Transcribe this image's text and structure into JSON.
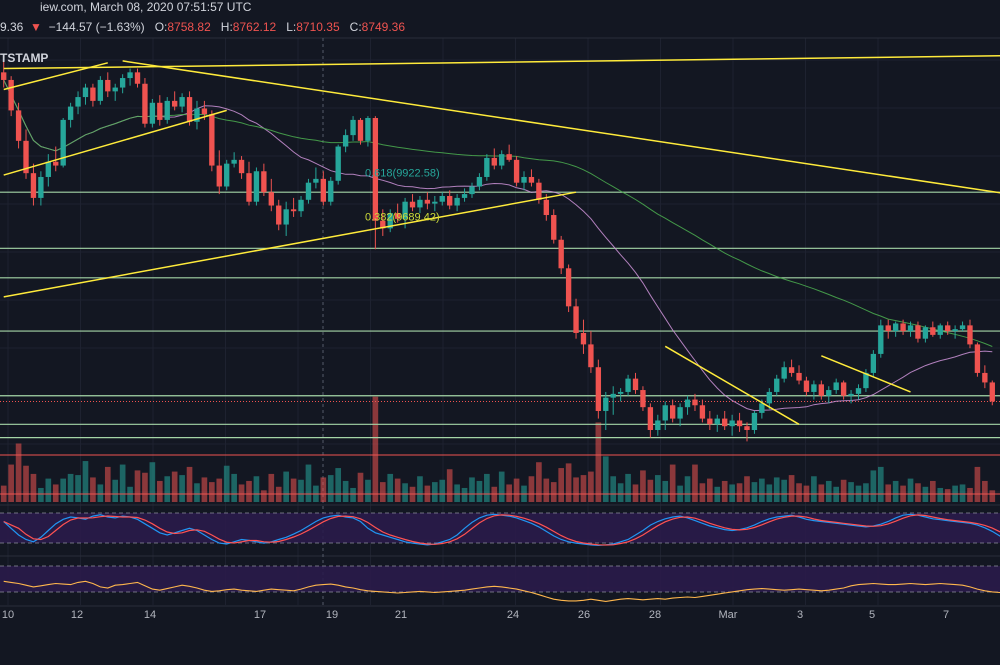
{
  "header": {
    "source_line": "iew.com, March 08, 2020 07:51:57 UTC",
    "price_fragment": "9.36",
    "change": "−144.57 (−1.63%)",
    "ohlc": [
      {
        "key": "O:",
        "value": "8758.82"
      },
      {
        "key": "H:",
        "value": "8762.12"
      },
      {
        "key": "L:",
        "value": "8710.35"
      },
      {
        "key": "C:",
        "value": "8749.36"
      }
    ],
    "exchange_fragment": "TSTAMP"
  },
  "fib_labels": [
    "0.618(9922.58)",
    "0.382(9689.42)"
  ],
  "colors": {
    "background": "#131722",
    "up": "#26a69a",
    "down": "#ef5350",
    "trendline": "#ffeb3b",
    "hline": "#a5d6a7",
    "ma_fast": "#ce93d8",
    "ma_slow": "#4caf50",
    "stoch_k": "#2196f3",
    "stoch_d": "#ff5252",
    "rsi": "#ffb74d",
    "panel_fill": "#2a1b4a"
  },
  "chart_data": {
    "type": "candlestick",
    "symbol_fragment": "TSTAMP",
    "x_ticks": [
      "10",
      "12",
      "14",
      "17",
      "19",
      "21",
      "24",
      "26",
      "28",
      "Mar",
      "3",
      "5",
      "7"
    ],
    "price_range": [
      8600,
      10650
    ],
    "candles": [
      [
        10480,
        10560,
        10400,
        10440
      ],
      [
        10440,
        10460,
        10250,
        10280
      ],
      [
        10280,
        10320,
        10080,
        10120
      ],
      [
        10120,
        10180,
        9920,
        9950
      ],
      [
        9950,
        10000,
        9780,
        9820
      ],
      [
        9820,
        9960,
        9780,
        9930
      ],
      [
        9930,
        10050,
        9880,
        10010
      ],
      [
        10010,
        10090,
        9960,
        9990
      ],
      [
        9990,
        10240,
        9980,
        10230
      ],
      [
        10230,
        10320,
        10190,
        10300
      ],
      [
        10300,
        10380,
        10260,
        10350
      ],
      [
        10350,
        10420,
        10310,
        10400
      ],
      [
        10400,
        10420,
        10300,
        10330
      ],
      [
        10330,
        10460,
        10310,
        10440
      ],
      [
        10440,
        10480,
        10350,
        10380
      ],
      [
        10380,
        10420,
        10330,
        10400
      ],
      [
        10400,
        10470,
        10370,
        10450
      ],
      [
        10450,
        10500,
        10410,
        10480
      ],
      [
        10480,
        10500,
        10400,
        10420
      ],
      [
        10420,
        10450,
        10190,
        10210
      ],
      [
        10210,
        10340,
        10190,
        10320
      ],
      [
        10320,
        10360,
        10200,
        10230
      ],
      [
        10230,
        10350,
        10210,
        10330
      ],
      [
        10330,
        10380,
        10280,
        10300
      ],
      [
        10300,
        10370,
        10270,
        10350
      ],
      [
        10350,
        10380,
        10200,
        10220
      ],
      [
        10220,
        10330,
        10180,
        10290
      ],
      [
        10290,
        10330,
        10230,
        10260
      ],
      [
        10260,
        10280,
        9960,
        9990
      ],
      [
        9990,
        10070,
        9840,
        9880
      ],
      [
        9880,
        10020,
        9860,
        10000
      ],
      [
        10000,
        10060,
        9980,
        10020
      ],
      [
        10020,
        10040,
        9920,
        9950
      ],
      [
        9950,
        10010,
        9780,
        9800
      ],
      [
        9800,
        9980,
        9780,
        9960
      ],
      [
        9960,
        10000,
        9830,
        9850
      ],
      [
        9850,
        9920,
        9750,
        9780
      ],
      [
        9780,
        9810,
        9650,
        9680
      ],
      [
        9680,
        9800,
        9620,
        9760
      ],
      [
        9760,
        9820,
        9720,
        9750
      ],
      [
        9750,
        9830,
        9720,
        9810
      ],
      [
        9810,
        9920,
        9790,
        9900
      ],
      [
        9900,
        9980,
        9870,
        9920
      ],
      [
        9920,
        9960,
        9780,
        9800
      ],
      [
        9800,
        9930,
        9780,
        9910
      ],
      [
        9910,
        10100,
        9890,
        10090
      ],
      [
        10090,
        10180,
        10060,
        10150
      ],
      [
        10150,
        10250,
        10120,
        10230
      ],
      [
        10230,
        10240,
        10100,
        10120
      ],
      [
        10120,
        10250,
        10090,
        10240
      ],
      [
        10240,
        10250,
        9550,
        9700
      ],
      [
        9700,
        9760,
        9620,
        9660
      ],
      [
        9660,
        9760,
        9640,
        9740
      ],
      [
        9740,
        9790,
        9690,
        9710
      ],
      [
        9710,
        9820,
        9660,
        9800
      ],
      [
        9800,
        9840,
        9750,
        9770
      ],
      [
        9770,
        9830,
        9740,
        9810
      ],
      [
        9810,
        9850,
        9760,
        9790
      ],
      [
        9790,
        9830,
        9750,
        9800
      ],
      [
        9800,
        9850,
        9780,
        9830
      ],
      [
        9830,
        9860,
        9760,
        9780
      ],
      [
        9780,
        9840,
        9750,
        9820
      ],
      [
        9820,
        9870,
        9800,
        9840
      ],
      [
        9840,
        9900,
        9820,
        9880
      ],
      [
        9880,
        9950,
        9860,
        9930
      ],
      [
        9930,
        10050,
        9910,
        10030
      ],
      [
        10030,
        10080,
        9970,
        9990
      ],
      [
        9990,
        10070,
        9970,
        10050
      ],
      [
        10050,
        10100,
        10010,
        10020
      ],
      [
        10020,
        10040,
        9880,
        9900
      ],
      [
        9900,
        9960,
        9860,
        9930
      ],
      [
        9930,
        9970,
        9880,
        9900
      ],
      [
        9900,
        9920,
        9790,
        9810
      ],
      [
        9810,
        9840,
        9700,
        9730
      ],
      [
        9730,
        9760,
        9580,
        9600
      ],
      [
        9600,
        9620,
        9420,
        9450
      ],
      [
        9450,
        9470,
        9220,
        9250
      ],
      [
        9250,
        9290,
        9080,
        9110
      ],
      [
        9110,
        9180,
        9000,
        9050
      ],
      [
        9050,
        9120,
        8900,
        8930
      ],
      [
        8930,
        8970,
        8660,
        8700
      ],
      [
        8700,
        8800,
        8600,
        8770
      ],
      [
        8770,
        8830,
        8680,
        8790
      ],
      [
        8790,
        8820,
        8750,
        8800
      ],
      [
        8800,
        8890,
        8780,
        8870
      ],
      [
        8870,
        8900,
        8790,
        8810
      ],
      [
        8810,
        8830,
        8700,
        8720
      ],
      [
        8720,
        8740,
        8560,
        8600
      ],
      [
        8600,
        8680,
        8570,
        8650
      ],
      [
        8650,
        8750,
        8600,
        8730
      ],
      [
        8730,
        8760,
        8640,
        8660
      ],
      [
        8660,
        8740,
        8620,
        8720
      ],
      [
        8720,
        8780,
        8680,
        8760
      ],
      [
        8760,
        8790,
        8700,
        8730
      ],
      [
        8730,
        8760,
        8640,
        8660
      ],
      [
        8660,
        8700,
        8600,
        8630
      ],
      [
        8630,
        8680,
        8590,
        8660
      ],
      [
        8660,
        8700,
        8600,
        8620
      ],
      [
        8620,
        8680,
        8570,
        8650
      ],
      [
        8650,
        8690,
        8590,
        8620
      ],
      [
        8620,
        8640,
        8540,
        8600
      ],
      [
        8600,
        8700,
        8580,
        8690
      ],
      [
        8690,
        8760,
        8660,
        8740
      ],
      [
        8740,
        8820,
        8710,
        8800
      ],
      [
        8800,
        8890,
        8780,
        8870
      ],
      [
        8870,
        8960,
        8850,
        8930
      ],
      [
        8930,
        8970,
        8880,
        8900
      ],
      [
        8900,
        8940,
        8840,
        8860
      ],
      [
        8860,
        8880,
        8780,
        8800
      ],
      [
        8800,
        8860,
        8760,
        8840
      ],
      [
        8840,
        8860,
        8760,
        8780
      ],
      [
        8780,
        8830,
        8740,
        8810
      ],
      [
        8810,
        8870,
        8790,
        8850
      ],
      [
        8850,
        8860,
        8760,
        8780
      ],
      [
        8780,
        8810,
        8740,
        8790
      ],
      [
        8790,
        8840,
        8760,
        8820
      ],
      [
        8820,
        8920,
        8800,
        8900
      ],
      [
        8900,
        9020,
        8880,
        9000
      ],
      [
        9000,
        9180,
        8980,
        9150
      ],
      [
        9150,
        9180,
        9080,
        9120
      ],
      [
        9120,
        9170,
        9090,
        9160
      ],
      [
        9160,
        9180,
        9100,
        9120
      ],
      [
        9120,
        9170,
        9090,
        9150
      ],
      [
        9150,
        9170,
        9060,
        9080
      ],
      [
        9080,
        9150,
        9060,
        9140
      ],
      [
        9140,
        9170,
        9090,
        9100
      ],
      [
        9100,
        9160,
        9080,
        9150
      ],
      [
        9150,
        9170,
        9100,
        9120
      ],
      [
        9120,
        9150,
        9080,
        9130
      ],
      [
        9130,
        9170,
        9120,
        9150
      ],
      [
        9150,
        9180,
        9030,
        9050
      ],
      [
        9050,
        9060,
        8880,
        8900
      ],
      [
        8900,
        8940,
        8820,
        8850
      ],
      [
        8850,
        8860,
        8730,
        8750
      ]
    ],
    "volume": [
      1.4,
      3.2,
      5.0,
      3.1,
      2.4,
      1.2,
      2.0,
      1.5,
      2.0,
      2.4,
      2.3,
      3.5,
      2.1,
      1.5,
      3.0,
      1.9,
      3.2,
      1.3,
      2.7,
      2.5,
      3.4,
      1.8,
      2.2,
      2.6,
      2.3,
      3.0,
      1.6,
      2.1,
      1.7,
      2.0,
      3.1,
      2.4,
      1.5,
      1.8,
      2.2,
      1.0,
      2.4,
      1.3,
      2.6,
      2.0,
      1.9,
      3.2,
      1.4,
      2.1,
      2.3,
      2.9,
      1.8,
      1.2,
      2.5,
      1.9,
      9.0,
      1.7,
      2.4,
      2.0,
      1.6,
      1.3,
      2.2,
      1.4,
      1.7,
      1.9,
      2.8,
      1.5,
      1.2,
      2.1,
      1.8,
      2.4,
      1.3,
      2.6,
      1.5,
      2.0,
      1.4,
      2.2,
      3.4,
      2.0,
      1.7,
      2.9,
      3.3,
      2.1,
      2.3,
      2.6,
      6.8,
      3.9,
      2.2,
      1.6,
      2.4,
      1.5,
      2.7,
      1.9,
      2.3,
      1.8,
      3.2,
      1.4,
      2.2,
      3.2,
      1.6,
      2.0,
      1.3,
      1.8,
      1.5,
      1.6,
      2.2,
      1.7,
      2.0,
      1.5,
      2.1,
      1.9,
      2.3,
      1.6,
      1.4,
      2.2,
      1.5,
      1.8,
      1.3,
      1.9,
      1.7,
      1.4,
      1.6,
      2.7,
      3.0,
      1.5,
      1.8,
      1.4,
      2.0,
      1.6,
      1.3,
      1.8,
      1.2,
      1.1,
      1.4,
      1.5,
      1.2,
      3.0,
      1.8,
      1.0
    ],
    "volume_range": [
      0,
      10
    ],
    "stoch_k": [
      70,
      55,
      40,
      30,
      25,
      35,
      50,
      65,
      75,
      80,
      78,
      75,
      82,
      85,
      80,
      78,
      82,
      80,
      75,
      65,
      55,
      45,
      40,
      45,
      50,
      55,
      50,
      40,
      30,
      22,
      20,
      25,
      30,
      28,
      25,
      22,
      25,
      30,
      35,
      42,
      50,
      60,
      70,
      78,
      82,
      84,
      80,
      78,
      70,
      55,
      45,
      40,
      35,
      30,
      25,
      22,
      20,
      18,
      20,
      25,
      30,
      40,
      55,
      68,
      78,
      84,
      86,
      84,
      82,
      78,
      72,
      66,
      58,
      48,
      38,
      30,
      25,
      22,
      20,
      18,
      17,
      18,
      20,
      25,
      30,
      40,
      50,
      62,
      70,
      76,
      80,
      82,
      78,
      72,
      66,
      60,
      56,
      52,
      50,
      52,
      56,
      62,
      70,
      76,
      80,
      82,
      84,
      80,
      75,
      72,
      70,
      68,
      66,
      64,
      62,
      60,
      58,
      60,
      64,
      70,
      78,
      84,
      86,
      84,
      80,
      76,
      74,
      72,
      70,
      68,
      66,
      62,
      56,
      48,
      38,
      28,
      22,
      18,
      16,
      15,
      14,
      14
    ],
    "stoch_range": [
      0,
      100
    ],
    "rsi": [
      62,
      60,
      58,
      55,
      52,
      54,
      56,
      58,
      57,
      56,
      60,
      62,
      58,
      52,
      50,
      55,
      56,
      58,
      60,
      54,
      48,
      46,
      49,
      52,
      55,
      53,
      50,
      46,
      44,
      45,
      47,
      48,
      46,
      45,
      44,
      46,
      48,
      47,
      46,
      45,
      48,
      52,
      55,
      56,
      57,
      55,
      52,
      50,
      47,
      45,
      44,
      43,
      42,
      41,
      42,
      43,
      44,
      43,
      42,
      43,
      44,
      45,
      46,
      48,
      50,
      52,
      53,
      52,
      50,
      48,
      45,
      42,
      38,
      34,
      30,
      28,
      27,
      27,
      28,
      30,
      28,
      26,
      28,
      30,
      31,
      30,
      29,
      30,
      31,
      30,
      32,
      33,
      34,
      33,
      35,
      37,
      39,
      41,
      43,
      45,
      47,
      48,
      49,
      48,
      47,
      46,
      47,
      48,
      47,
      46,
      45,
      46,
      48,
      50,
      54,
      56,
      57,
      58,
      57,
      56,
      56,
      57,
      58,
      57,
      56,
      57,
      58,
      57,
      56,
      55,
      52,
      48,
      45,
      43,
      42,
      41,
      40,
      40,
      39,
      38,
      38,
      38
    ],
    "rsi_range": [
      0,
      100
    ],
    "fib_levels": [
      {
        "label": "0.618(9922.58)",
        "value": 9922.58
      },
      {
        "label": "0.382(9689.42)",
        "value": 9689.42
      }
    ],
    "horizontal_levels": [
      9850,
      9555,
      9400,
      9120,
      8780,
      8630,
      8560
    ],
    "trendlines": [
      {
        "points": [
          [
            0,
            10390
          ],
          [
            14,
            10530
          ]
        ]
      },
      {
        "points": [
          [
            0,
            9940
          ],
          [
            30,
            10280
          ]
        ]
      },
      {
        "points": [
          [
            0,
            9300
          ],
          [
            77,
            9850
          ]
        ]
      },
      {
        "points": [
          [
            0,
            10500
          ],
          [
            200,
            10600
          ]
        ]
      },
      {
        "points": [
          [
            16,
            10540
          ],
          [
            200,
            9460
          ]
        ]
      },
      {
        "points": [
          [
            89,
            9040
          ],
          [
            107,
            8630
          ]
        ]
      },
      {
        "points": [
          [
            110,
            8990
          ],
          [
            122,
            8800
          ]
        ]
      }
    ],
    "grid": true
  }
}
